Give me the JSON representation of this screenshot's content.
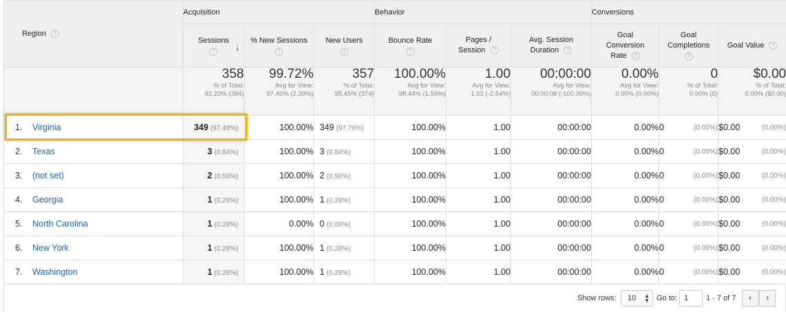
{
  "header": {
    "region": "Region",
    "groups": {
      "acquisition": "Acquisition",
      "behavior": "Behavior",
      "conversions": "Conversions"
    },
    "columns": {
      "sessions": "Sessions",
      "pct_new_sessions": "% New Sessions",
      "new_users": "New Users",
      "bounce_rate": "Bounce Rate",
      "pages_session_1": "Pages /",
      "pages_session_2": "Session",
      "avg_session_1": "Avg. Session",
      "avg_session_2": "Duration",
      "goal_conv_1": "Goal",
      "goal_conv_2": "Conversion",
      "goal_conv_3": "Rate",
      "goal_comp_1": "Goal",
      "goal_comp_2": "Completions",
      "goal_value": "Goal Value"
    },
    "help_glyph": "?",
    "sort_glyph": "↓"
  },
  "totals": {
    "sessions": {
      "value": "358",
      "line1": "% of Total:",
      "line2": "93.23% (384)"
    },
    "pct_new": {
      "value": "99.72%",
      "line1": "Avg for View:",
      "line2": "97.40% (2.39%)"
    },
    "new_users": {
      "value": "357",
      "line1": "% of Total:",
      "line2": "95.45% (374)"
    },
    "bounce": {
      "value": "100.00%",
      "line1": "Avg for View:",
      "line2": "98.44% (1.59%)"
    },
    "pages": {
      "value": "1.00",
      "line1": "Avg for View:",
      "line2": "1.03 (-2.54%)"
    },
    "duration": {
      "value": "00:00:00",
      "line1": "Avg for View:",
      "line2": "00:00:08 (-100.00%)"
    },
    "goal_rate": {
      "value": "0.00%",
      "line1": "Avg for View:",
      "line2": "0.00% (0.00%)"
    },
    "goal_comp": {
      "value": "0",
      "line1": "% of Total:",
      "line2": "0.00% (0)"
    },
    "goal_value": {
      "value": "$0.00",
      "line1": "% of Total:",
      "line2": "0.00% ($0.00)"
    }
  },
  "rows": [
    {
      "idx": "1.",
      "region": "Virginia",
      "sessions": "349",
      "sessions_pct": "(97.49%)",
      "pct_new": "100.00%",
      "new_users": "349",
      "new_users_pct": "(97.76%)",
      "bounce": "100.00%",
      "pages": "1.00",
      "duration": "00:00:00",
      "goal_rate": "0.00%",
      "goal_comp": "0",
      "goal_comp_pct": "(0.00%)",
      "goal_value": "$0.00",
      "goal_value_pct": "(0.00%)"
    },
    {
      "idx": "2.",
      "region": "Texas",
      "sessions": "3",
      "sessions_pct": "(0.84%)",
      "pct_new": "100.00%",
      "new_users": "3",
      "new_users_pct": "(0.84%)",
      "bounce": "100.00%",
      "pages": "1.00",
      "duration": "00:00:00",
      "goal_rate": "0.00%",
      "goal_comp": "0",
      "goal_comp_pct": "(0.00%)",
      "goal_value": "$0.00",
      "goal_value_pct": "(0.00%)"
    },
    {
      "idx": "3.",
      "region": "(not set)",
      "sessions": "2",
      "sessions_pct": "(0.56%)",
      "pct_new": "100.00%",
      "new_users": "2",
      "new_users_pct": "(0.56%)",
      "bounce": "100.00%",
      "pages": "1.00",
      "duration": "00:00:00",
      "goal_rate": "0.00%",
      "goal_comp": "0",
      "goal_comp_pct": "(0.00%)",
      "goal_value": "$0.00",
      "goal_value_pct": "(0.00%)"
    },
    {
      "idx": "4.",
      "region": "Georgia",
      "sessions": "1",
      "sessions_pct": "(0.28%)",
      "pct_new": "100.00%",
      "new_users": "1",
      "new_users_pct": "(0.28%)",
      "bounce": "100.00%",
      "pages": "1.00",
      "duration": "00:00:00",
      "goal_rate": "0.00%",
      "goal_comp": "0",
      "goal_comp_pct": "(0.00%)",
      "goal_value": "$0.00",
      "goal_value_pct": "(0.00%)"
    },
    {
      "idx": "5.",
      "region": "North Carolina",
      "sessions": "1",
      "sessions_pct": "(0.28%)",
      "pct_new": "0.00%",
      "new_users": "0",
      "new_users_pct": "(0.00%)",
      "bounce": "100.00%",
      "pages": "1.00",
      "duration": "00:00:00",
      "goal_rate": "0.00%",
      "goal_comp": "0",
      "goal_comp_pct": "(0.00%)",
      "goal_value": "$0.00",
      "goal_value_pct": "(0.00%)"
    },
    {
      "idx": "6.",
      "region": "New York",
      "sessions": "1",
      "sessions_pct": "(0.28%)",
      "pct_new": "100.00%",
      "new_users": "1",
      "new_users_pct": "(0.28%)",
      "bounce": "100.00%",
      "pages": "1.00",
      "duration": "00:00:00",
      "goal_rate": "0.00%",
      "goal_comp": "0",
      "goal_comp_pct": "(0.00%)",
      "goal_value": "$0.00",
      "goal_value_pct": "(0.00%)"
    },
    {
      "idx": "7.",
      "region": "Washington",
      "sessions": "1",
      "sessions_pct": "(0.28%)",
      "pct_new": "100.00%",
      "new_users": "1",
      "new_users_pct": "(0.28%)",
      "bounce": "100.00%",
      "pages": "1.00",
      "duration": "00:00:00",
      "goal_rate": "0.00%",
      "goal_comp": "0",
      "goal_comp_pct": "(0.00%)",
      "goal_value": "$0.00",
      "goal_value_pct": "(0.00%)"
    }
  ],
  "footer": {
    "show_rows_label": "Show rows:",
    "show_rows_value": "10",
    "goto_label": "Go to:",
    "goto_value": "1",
    "range": "1 - 7 of 7",
    "prev_glyph": "‹",
    "next_glyph": "›"
  },
  "colors": {
    "highlight": "#f2b400",
    "link": "#1a5faa",
    "header_bg": "#efefef"
  }
}
